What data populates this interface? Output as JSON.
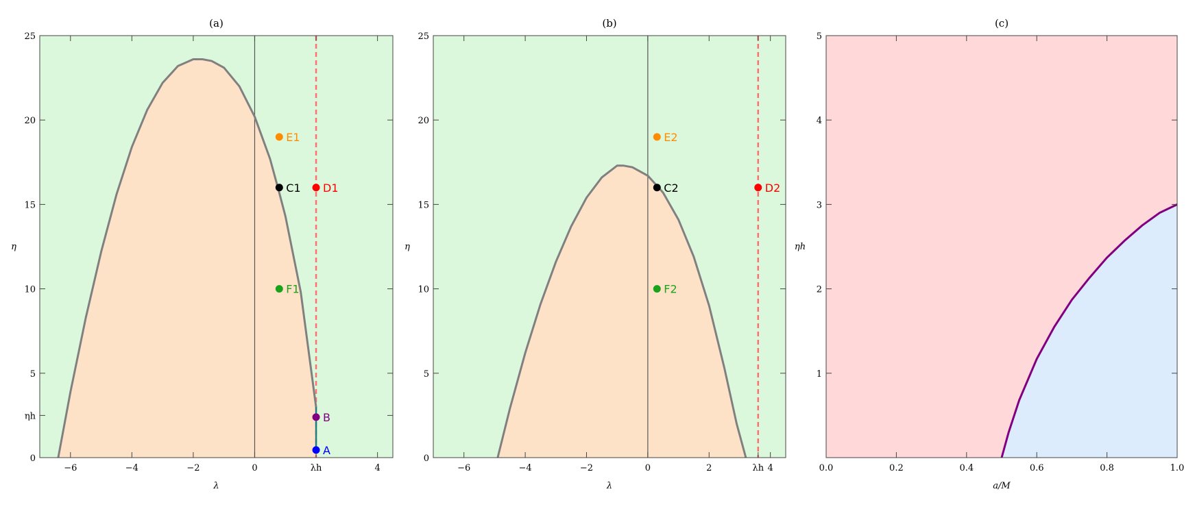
{
  "chart_data": [
    {
      "type": "line",
      "title": "(a)",
      "xlabel": "λ",
      "ylabel": "η",
      "xlim": [
        -7,
        4.5
      ],
      "ylim": [
        0,
        25
      ],
      "xticks": [
        -6,
        -4,
        -2,
        0,
        2,
        4
      ],
      "xtick_labels": [
        "−6",
        "−4",
        "−2",
        "0",
        "λh",
        "4"
      ],
      "xtick_special": {
        "2": "λh"
      },
      "yticks": [
        0,
        2.5,
        5,
        10,
        15,
        20,
        25
      ],
      "ytick_labels": [
        "0",
        "ηh",
        "5",
        "10",
        "15",
        "20",
        "25"
      ],
      "ytick_special": {
        "2.5": "ηh"
      },
      "background_color": "#dcf8dc",
      "region_color": "#fde2c8",
      "curve": {
        "color": "#808080",
        "x": [
          -6.4,
          -6.0,
          -5.5,
          -5.0,
          -4.5,
          -4.0,
          -3.5,
          -3.0,
          -2.5,
          -2.0,
          -1.7,
          -1.4,
          -1.0,
          -0.5,
          0.0,
          0.5,
          0.8,
          1.0,
          1.5,
          2.0
        ],
        "y": [
          0.0,
          3.9,
          8.3,
          12.2,
          15.6,
          18.4,
          20.6,
          22.2,
          23.2,
          23.6,
          23.6,
          23.5,
          23.1,
          22.0,
          20.2,
          17.7,
          15.7,
          14.3,
          9.8,
          3.0
        ]
      },
      "vertical_line_x": 0,
      "dashed_line": {
        "x": 2,
        "color": "#ff7070"
      },
      "teal_segment": {
        "x": 2,
        "y0": 0.5,
        "y1": 3.0,
        "color": "#1f7f7f"
      },
      "points": [
        {
          "name": "E1",
          "x": 0.8,
          "y": 19,
          "color": "#ff8c00"
        },
        {
          "name": "C1",
          "x": 0.8,
          "y": 16,
          "color": "#000000"
        },
        {
          "name": "D1",
          "x": 2.0,
          "y": 16,
          "color": "#ff0000"
        },
        {
          "name": "F1",
          "x": 0.8,
          "y": 10,
          "color": "#1aa31a"
        },
        {
          "name": "B",
          "x": 2.0,
          "y": 2.4,
          "color": "#800080"
        },
        {
          "name": "A",
          "x": 2.0,
          "y": 0.45,
          "color": "#0000ff"
        }
      ]
    },
    {
      "type": "line",
      "title": "(b)",
      "xlabel": "λ",
      "ylabel": "η",
      "xlim": [
        -7,
        4.5
      ],
      "ylim": [
        0,
        25
      ],
      "xticks": [
        -6,
        -4,
        -2,
        0,
        2,
        3.6,
        4
      ],
      "xtick_labels": [
        "−6",
        "−4",
        "−2",
        "0",
        "2",
        "λh",
        "4"
      ],
      "xtick_special": {
        "3.6": "λh"
      },
      "yticks": [
        0,
        5,
        10,
        15,
        20,
        25
      ],
      "ytick_labels": [
        "0",
        "5",
        "10",
        "15",
        "20",
        "25"
      ],
      "background_color": "#dcf8dc",
      "region_color": "#fde2c8",
      "curve": {
        "color": "#808080",
        "x": [
          -4.9,
          -4.5,
          -4.0,
          -3.5,
          -3.0,
          -2.5,
          -2.0,
          -1.5,
          -1.0,
          -0.8,
          -0.5,
          0.0,
          0.3,
          0.5,
          1.0,
          1.5,
          2.0,
          2.5,
          2.9,
          3.2
        ],
        "y": [
          0.0,
          2.9,
          6.2,
          9.1,
          11.6,
          13.7,
          15.4,
          16.6,
          17.3,
          17.3,
          17.2,
          16.7,
          16.1,
          15.7,
          14.1,
          11.9,
          9.0,
          5.3,
          2.0,
          0.0
        ]
      },
      "vertical_line_x": 0,
      "dashed_line": {
        "x": 3.6,
        "color": "#ff7070"
      },
      "points": [
        {
          "name": "E2",
          "x": 0.3,
          "y": 19,
          "color": "#ff8c00"
        },
        {
          "name": "C2",
          "x": 0.3,
          "y": 16,
          "color": "#000000"
        },
        {
          "name": "D2",
          "x": 3.6,
          "y": 16,
          "color": "#ff0000"
        },
        {
          "name": "F2",
          "x": 0.3,
          "y": 10,
          "color": "#1aa31a"
        }
      ]
    },
    {
      "type": "area",
      "title": "(c)",
      "xlabel": "a/M",
      "ylabel": "ηh",
      "xlim": [
        0,
        1
      ],
      "ylim": [
        0,
        5
      ],
      "xticks": [
        0,
        0.2,
        0.4,
        0.6,
        0.8,
        1
      ],
      "xtick_labels": [
        "0.0",
        "0.2",
        "0.4",
        "0.6",
        "0.8",
        "1.0"
      ],
      "yticks": [
        1,
        2,
        3,
        4,
        5
      ],
      "ytick_labels": [
        "1",
        "2",
        "3",
        "4",
        "5"
      ],
      "upper_color": "#ffd8da",
      "lower_color": "#dcecfc",
      "curve": {
        "color": "#800080",
        "x": [
          0.5,
          0.52,
          0.55,
          0.6,
          0.65,
          0.7,
          0.75,
          0.8,
          0.85,
          0.9,
          0.95,
          1.0
        ],
        "y": [
          0.0,
          0.3,
          0.68,
          1.17,
          1.55,
          1.87,
          2.13,
          2.37,
          2.57,
          2.75,
          2.9,
          3.0
        ]
      }
    }
  ]
}
